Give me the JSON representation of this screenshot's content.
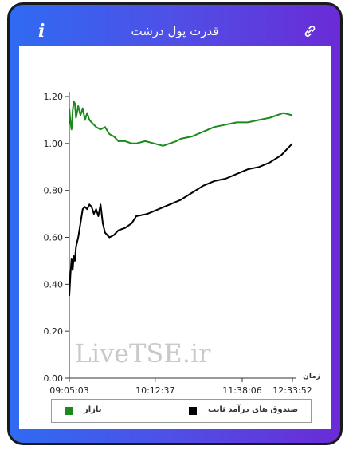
{
  "app": {
    "title": "قدرت پول درشت"
  },
  "icons": {
    "info": "info-icon",
    "info_glyph": "i",
    "link": "link-icon"
  },
  "watermark": "LiveTSE.ir",
  "colors": {
    "market": "#1a8a1a",
    "fund": "#000000",
    "frame_start": "#2f6bf2",
    "frame_end": "#6a2bd6"
  },
  "chart_data": {
    "type": "line",
    "xlabel": "زمان",
    "x_ticks": [
      "09:05:03",
      "10:12:37",
      "11:38:06",
      "12:33:52"
    ],
    "y_ticks": [
      "0.00",
      "0.20",
      "0.40",
      "0.60",
      "0.80",
      "1.00",
      "1.20"
    ],
    "ylim": [
      0,
      1.2
    ],
    "grid": false,
    "legend_position": "bottom",
    "series": [
      {
        "name": "بازار",
        "color": "#1a8a1a",
        "x": [
          0,
          0.005,
          0.01,
          0.015,
          0.02,
          0.025,
          0.03,
          0.04,
          0.05,
          0.06,
          0.07,
          0.08,
          0.09,
          0.1,
          0.12,
          0.14,
          0.16,
          0.18,
          0.2,
          0.22,
          0.25,
          0.28,
          0.3,
          0.34,
          0.38,
          0.42,
          0.45,
          0.48,
          0.5,
          0.55,
          0.6,
          0.65,
          0.7,
          0.75,
          0.8,
          0.85,
          0.9,
          0.93,
          0.96,
          1.0
        ],
        "y": [
          1.15,
          1.09,
          1.06,
          1.14,
          1.18,
          1.17,
          1.11,
          1.16,
          1.12,
          1.15,
          1.1,
          1.13,
          1.1,
          1.09,
          1.07,
          1.06,
          1.07,
          1.04,
          1.03,
          1.01,
          1.01,
          1.0,
          1.0,
          1.01,
          1.0,
          0.99,
          1.0,
          1.01,
          1.02,
          1.03,
          1.05,
          1.07,
          1.08,
          1.09,
          1.09,
          1.1,
          1.11,
          1.12,
          1.13,
          1.12
        ]
      },
      {
        "name": "صندوق های درآمد ثابت",
        "color": "#000000",
        "x": [
          0,
          0.005,
          0.01,
          0.015,
          0.02,
          0.025,
          0.03,
          0.04,
          0.05,
          0.06,
          0.07,
          0.08,
          0.09,
          0.1,
          0.11,
          0.12,
          0.13,
          0.14,
          0.15,
          0.16,
          0.18,
          0.2,
          0.22,
          0.25,
          0.28,
          0.3,
          0.35,
          0.4,
          0.45,
          0.5,
          0.55,
          0.6,
          0.65,
          0.7,
          0.75,
          0.8,
          0.85,
          0.9,
          0.95,
          1.0
        ],
        "y": [
          0.35,
          0.44,
          0.51,
          0.46,
          0.52,
          0.5,
          0.56,
          0.6,
          0.66,
          0.72,
          0.73,
          0.72,
          0.74,
          0.73,
          0.7,
          0.72,
          0.69,
          0.74,
          0.66,
          0.62,
          0.6,
          0.61,
          0.63,
          0.64,
          0.66,
          0.69,
          0.7,
          0.72,
          0.74,
          0.76,
          0.79,
          0.82,
          0.84,
          0.85,
          0.87,
          0.89,
          0.9,
          0.92,
          0.95,
          1.0
        ]
      }
    ]
  },
  "legend": {
    "market_label": "بازار",
    "fund_label": "صندوق های درآمد ثابت"
  }
}
